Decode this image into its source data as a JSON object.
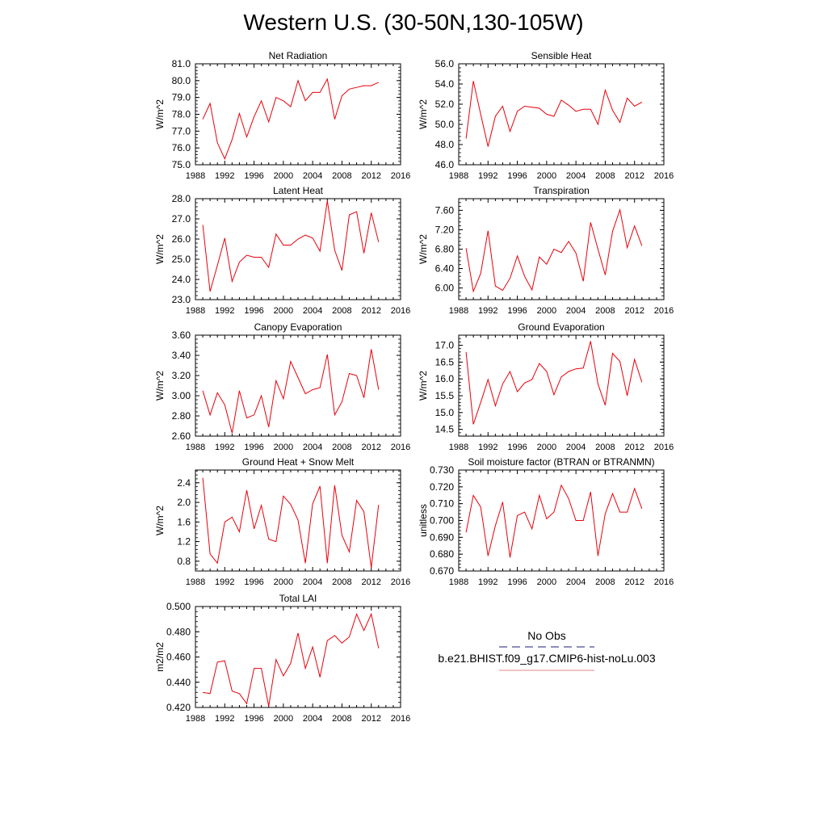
{
  "title": "Western U.S. (30-50N,130-105W)",
  "legend": {
    "entries": [
      {
        "label": "No Obs",
        "style": "dashed",
        "color": "#4b4b8f"
      },
      {
        "label": "b.e21.BHIST.f09_g17.CMIP6-hist-noLu.003",
        "style": "solid",
        "color": "#e8a0a0"
      }
    ]
  },
  "series_color": "#e8000b",
  "chart_data": [
    {
      "type": "line",
      "title": "Net Radiation",
      "ylabel": "W/m^2",
      "xlim": [
        1988,
        2016
      ],
      "xticks": [
        1988,
        1992,
        1996,
        2000,
        2004,
        2008,
        2012,
        2016
      ],
      "ylim": [
        75.0,
        81.0
      ],
      "yticks": [
        75.0,
        76.0,
        77.0,
        78.0,
        79.0,
        80.0,
        81.0
      ],
      "ydecimals": 1,
      "x": [
        1989,
        1990,
        1991,
        1992,
        1993,
        1994,
        1995,
        1996,
        1997,
        1998,
        1999,
        2000,
        2001,
        2002,
        2003,
        2004,
        2005,
        2006,
        2007,
        2008,
        2009,
        2010,
        2011,
        2012,
        2013
      ],
      "values": [
        77.7,
        78.65,
        76.3,
        75.35,
        76.5,
        78.05,
        76.65,
        77.85,
        78.8,
        77.55,
        79.0,
        78.8,
        78.45,
        80.0,
        78.8,
        79.3,
        79.3,
        80.1,
        77.7,
        79.1,
        79.5,
        79.6,
        79.7,
        79.7,
        79.9
      ]
    },
    {
      "type": "line",
      "title": "Sensible Heat",
      "ylabel": "W/m^2",
      "xlim": [
        1988,
        2016
      ],
      "xticks": [
        1988,
        1992,
        1996,
        2000,
        2004,
        2008,
        2012,
        2016
      ],
      "ylim": [
        46.0,
        56.0
      ],
      "yticks": [
        46.0,
        48.0,
        50.0,
        52.0,
        54.0,
        56.0
      ],
      "ydecimals": 1,
      "x": [
        1989,
        1990,
        1991,
        1992,
        1993,
        1994,
        1995,
        1996,
        1997,
        1998,
        1999,
        2000,
        2001,
        2002,
        2003,
        2004,
        2005,
        2006,
        2007,
        2008,
        2009,
        2010,
        2011,
        2012,
        2013
      ],
      "values": [
        48.6,
        54.3,
        51.0,
        47.8,
        50.8,
        51.8,
        49.3,
        51.3,
        51.8,
        51.7,
        51.6,
        51.0,
        50.8,
        52.4,
        51.9,
        51.3,
        51.5,
        51.5,
        50.0,
        53.4,
        51.4,
        50.2,
        52.6,
        51.8,
        52.2
      ]
    },
    {
      "type": "line",
      "title": "Latent Heat",
      "ylabel": "W/m^2",
      "xlim": [
        1988,
        2016
      ],
      "xticks": [
        1988,
        1992,
        1996,
        2000,
        2004,
        2008,
        2012,
        2016
      ],
      "ylim": [
        23.0,
        28.0
      ],
      "yticks": [
        23.0,
        24.0,
        25.0,
        26.0,
        27.0,
        28.0
      ],
      "ydecimals": 1,
      "x": [
        1989,
        1990,
        1991,
        1992,
        1993,
        1994,
        1995,
        1996,
        1997,
        1998,
        1999,
        2000,
        2001,
        2002,
        2003,
        2004,
        2005,
        2006,
        2007,
        2008,
        2009,
        2010,
        2011,
        2012,
        2013
      ],
      "values": [
        26.7,
        23.4,
        24.7,
        26.05,
        23.9,
        24.85,
        25.2,
        25.1,
        25.1,
        24.6,
        26.25,
        25.7,
        25.7,
        26.0,
        26.2,
        26.05,
        25.4,
        27.9,
        25.45,
        24.45,
        27.2,
        27.35,
        25.3,
        27.3,
        25.85
      ]
    },
    {
      "type": "line",
      "title": "Transpiration",
      "ylabel": "W/m^2",
      "xlim": [
        1988,
        2016
      ],
      "xticks": [
        1988,
        1992,
        1996,
        2000,
        2004,
        2008,
        2012,
        2016
      ],
      "ylim": [
        5.76,
        7.84
      ],
      "yticks": [
        6.0,
        6.4,
        6.8,
        7.2,
        7.6
      ],
      "ydecimals": 2,
      "x": [
        1989,
        1990,
        1991,
        1992,
        1993,
        1994,
        1995,
        1996,
        1997,
        1998,
        1999,
        2000,
        2001,
        2002,
        2003,
        2004,
        2005,
        2006,
        2007,
        2008,
        2009,
        2010,
        2011,
        2012,
        2013
      ],
      "values": [
        6.82,
        5.93,
        6.3,
        7.18,
        6.04,
        5.95,
        6.2,
        6.66,
        6.24,
        5.96,
        6.64,
        6.49,
        6.8,
        6.73,
        6.96,
        6.72,
        6.14,
        7.35,
        6.8,
        6.27,
        7.17,
        7.61,
        6.83,
        7.28,
        6.87
      ]
    },
    {
      "type": "line",
      "title": "Canopy Evaporation",
      "ylabel": "W/m^2",
      "xlim": [
        1988,
        2016
      ],
      "xticks": [
        1988,
        1992,
        1996,
        2000,
        2004,
        2008,
        2012,
        2016
      ],
      "ylim": [
        2.6,
        3.6
      ],
      "yticks": [
        2.6,
        2.8,
        3.0,
        3.2,
        3.4,
        3.6
      ],
      "ydecimals": 2,
      "x": [
        1989,
        1990,
        1991,
        1992,
        1993,
        1994,
        1995,
        1996,
        1997,
        1998,
        1999,
        2000,
        2001,
        2002,
        2003,
        2004,
        2005,
        2006,
        2007,
        2008,
        2009,
        2010,
        2011,
        2012,
        2013
      ],
      "values": [
        3.05,
        2.81,
        3.03,
        2.91,
        2.63,
        3.05,
        2.78,
        2.81,
        3.0,
        2.69,
        3.15,
        2.97,
        3.34,
        3.18,
        3.02,
        3.06,
        3.08,
        3.41,
        2.81,
        2.94,
        3.22,
        3.2,
        2.98,
        3.46,
        3.06
      ]
    },
    {
      "type": "line",
      "title": "Ground Evaporation",
      "ylabel": "W/m^2",
      "xlim": [
        1988,
        2016
      ],
      "xticks": [
        1988,
        1992,
        1996,
        2000,
        2004,
        2008,
        2012,
        2016
      ],
      "ylim": [
        14.3,
        17.3
      ],
      "yticks": [
        14.5,
        15.0,
        15.5,
        16.0,
        16.5,
        17.0
      ],
      "ydecimals": 1,
      "x": [
        1989,
        1990,
        1991,
        1992,
        1993,
        1994,
        1995,
        1996,
        1997,
        1998,
        1999,
        2000,
        2001,
        2002,
        2003,
        2004,
        2005,
        2006,
        2007,
        2008,
        2009,
        2010,
        2011,
        2012,
        2013
      ],
      "values": [
        16.8,
        14.65,
        15.3,
        15.98,
        15.2,
        15.85,
        16.22,
        15.62,
        15.88,
        15.98,
        16.46,
        16.22,
        15.53,
        16.06,
        16.22,
        16.3,
        16.32,
        17.12,
        15.85,
        15.22,
        16.76,
        16.52,
        15.5,
        16.58,
        15.9
      ]
    },
    {
      "type": "line",
      "title": "Ground Heat + Snow Melt",
      "ylabel": "W/m^2",
      "xlim": [
        1988,
        2016
      ],
      "xticks": [
        1988,
        1992,
        1996,
        2000,
        2004,
        2008,
        2012,
        2016
      ],
      "ylim": [
        0.6,
        2.66
      ],
      "yticks": [
        0.8,
        1.2,
        1.6,
        2.0,
        2.4
      ],
      "ydecimals": 1,
      "x": [
        1989,
        1990,
        1991,
        1992,
        1993,
        1994,
        1995,
        1996,
        1997,
        1998,
        1999,
        2000,
        2001,
        2002,
        2003,
        2004,
        2005,
        2006,
        2007,
        2008,
        2009,
        2010,
        2011,
        2012,
        2013
      ],
      "values": [
        2.5,
        0.95,
        0.76,
        1.6,
        1.7,
        1.4,
        2.25,
        1.46,
        1.94,
        1.25,
        1.2,
        2.13,
        1.96,
        1.64,
        0.76,
        1.97,
        2.33,
        0.76,
        2.35,
        1.33,
        0.99,
        2.04,
        1.81,
        0.67,
        1.95
      ]
    },
    {
      "type": "line",
      "title": "Soil moisture factor (BTRAN or BTRANMN)",
      "ylabel": "unitless",
      "xlim": [
        1988,
        2016
      ],
      "xticks": [
        1988,
        1992,
        1996,
        2000,
        2004,
        2008,
        2012,
        2016
      ],
      "ylim": [
        0.67,
        0.73
      ],
      "yticks": [
        0.67,
        0.68,
        0.69,
        0.7,
        0.71,
        0.72,
        0.73
      ],
      "ydecimals": 3,
      "x": [
        1989,
        1990,
        1991,
        1992,
        1993,
        1994,
        1995,
        1996,
        1997,
        1998,
        1999,
        2000,
        2001,
        2002,
        2003,
        2004,
        2005,
        2006,
        2007,
        2008,
        2009,
        2010,
        2011,
        2012,
        2013
      ],
      "values": [
        0.693,
        0.715,
        0.708,
        0.679,
        0.697,
        0.711,
        0.678,
        0.703,
        0.705,
        0.695,
        0.715,
        0.701,
        0.705,
        0.721,
        0.713,
        0.7,
        0.7,
        0.717,
        0.679,
        0.704,
        0.716,
        0.705,
        0.705,
        0.719,
        0.707
      ]
    },
    {
      "type": "line",
      "title": "Total LAI",
      "ylabel": "m2/m2",
      "xlim": [
        1988,
        2016
      ],
      "xticks": [
        1988,
        1992,
        1996,
        2000,
        2004,
        2008,
        2012,
        2016
      ],
      "ylim": [
        0.42,
        0.5
      ],
      "yticks": [
        0.42,
        0.44,
        0.46,
        0.48,
        0.5
      ],
      "ydecimals": 3,
      "x": [
        1989,
        1990,
        1991,
        1992,
        1993,
        1994,
        1995,
        1996,
        1997,
        1998,
        1999,
        2000,
        2001,
        2002,
        2003,
        2004,
        2005,
        2006,
        2007,
        2008,
        2009,
        2010,
        2011,
        2012,
        2013
      ],
      "values": [
        0.432,
        0.431,
        0.456,
        0.457,
        0.433,
        0.431,
        0.423,
        0.451,
        0.451,
        0.421,
        0.458,
        0.445,
        0.455,
        0.479,
        0.451,
        0.468,
        0.444,
        0.473,
        0.477,
        0.471,
        0.476,
        0.494,
        0.481,
        0.494,
        0.467
      ]
    }
  ]
}
